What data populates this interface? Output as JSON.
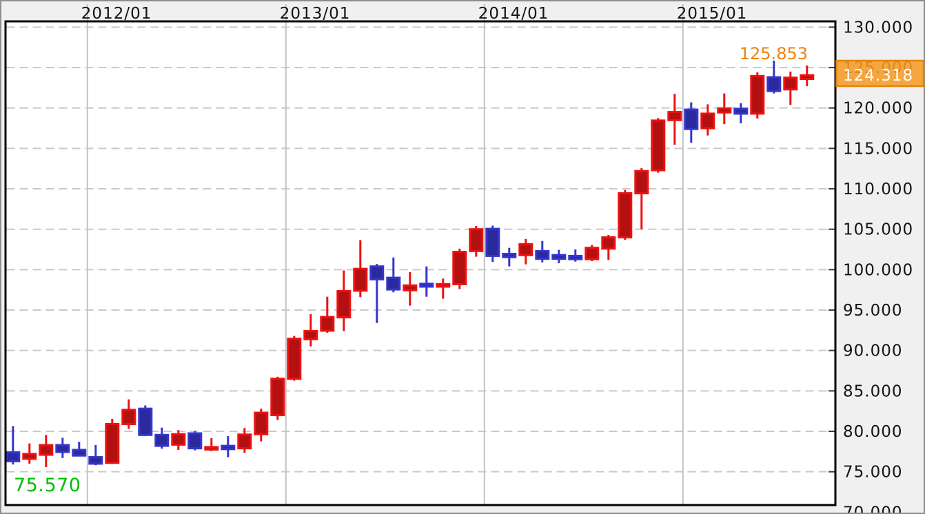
{
  "chart_data": {
    "type": "candlestick",
    "x_axis": {
      "labels": [
        "2012/01",
        "2013/01",
        "2014/01",
        "2015/01"
      ]
    },
    "y_axis": {
      "labels": [
        "130.000",
        "125.000",
        "120.000",
        "115.000",
        "110.000",
        "105.000",
        "100.000",
        "95.000",
        "90.000",
        "85.000",
        "80.000",
        "75.000",
        "70.000"
      ]
    },
    "candles": [
      {
        "m": "2011/08",
        "o": 77.4,
        "h": 80.65,
        "l": 75.9,
        "c": 76.3
      },
      {
        "m": "2011/09",
        "o": 76.6,
        "h": 78.5,
        "l": 76.0,
        "c": 77.2
      },
      {
        "m": "2011/10",
        "o": 77.1,
        "h": 79.55,
        "l": 75.57,
        "c": 78.3
      },
      {
        "m": "2011/11",
        "o": 78.3,
        "h": 79.2,
        "l": 76.7,
        "c": 77.45
      },
      {
        "m": "2011/12",
        "o": 77.7,
        "h": 78.7,
        "l": 76.9,
        "c": 77.0
      },
      {
        "m": "2012/01",
        "o": 76.8,
        "h": 78.3,
        "l": 75.8,
        "c": 76.0
      },
      {
        "m": "2012/02",
        "o": 76.1,
        "h": 81.55,
        "l": 75.95,
        "c": 80.9
      },
      {
        "m": "2012/03",
        "o": 80.9,
        "h": 83.95,
        "l": 80.3,
        "c": 82.65
      },
      {
        "m": "2012/04",
        "o": 82.8,
        "h": 83.2,
        "l": 79.4,
        "c": 79.55
      },
      {
        "m": "2012/05",
        "o": 79.55,
        "h": 80.45,
        "l": 77.85,
        "c": 78.2
      },
      {
        "m": "2012/06",
        "o": 78.35,
        "h": 80.15,
        "l": 77.7,
        "c": 79.65
      },
      {
        "m": "2012/07",
        "o": 79.75,
        "h": 80.05,
        "l": 77.65,
        "c": 77.9
      },
      {
        "m": "2012/08",
        "o": 77.75,
        "h": 79.15,
        "l": 77.55,
        "c": 78.05
      },
      {
        "m": "2012/09",
        "o": 78.2,
        "h": 79.4,
        "l": 76.8,
        "c": 77.8
      },
      {
        "m": "2012/10",
        "o": 77.9,
        "h": 80.4,
        "l": 77.35,
        "c": 79.6
      },
      {
        "m": "2012/11",
        "o": 79.65,
        "h": 82.8,
        "l": 78.75,
        "c": 82.3
      },
      {
        "m": "2012/12",
        "o": 82.0,
        "h": 86.75,
        "l": 81.4,
        "c": 86.5
      },
      {
        "m": "2013/01",
        "o": 86.5,
        "h": 91.8,
        "l": 86.25,
        "c": 91.45
      },
      {
        "m": "2013/02",
        "o": 91.4,
        "h": 94.5,
        "l": 90.5,
        "c": 92.4
      },
      {
        "m": "2013/03",
        "o": 92.45,
        "h": 96.65,
        "l": 92.2,
        "c": 94.15
      },
      {
        "m": "2013/04",
        "o": 94.1,
        "h": 99.9,
        "l": 92.4,
        "c": 97.35
      },
      {
        "m": "2013/05",
        "o": 97.4,
        "h": 103.65,
        "l": 96.6,
        "c": 100.1
      },
      {
        "m": "2013/06",
        "o": 100.4,
        "h": 100.7,
        "l": 93.4,
        "c": 98.8
      },
      {
        "m": "2013/07",
        "o": 99.0,
        "h": 101.5,
        "l": 97.2,
        "c": 97.55
      },
      {
        "m": "2013/08",
        "o": 97.45,
        "h": 99.7,
        "l": 95.55,
        "c": 98.05
      },
      {
        "m": "2013/09",
        "o": 98.25,
        "h": 100.4,
        "l": 96.65,
        "c": 97.9
      },
      {
        "m": "2013/10",
        "o": 97.9,
        "h": 98.9,
        "l": 96.4,
        "c": 98.2
      },
      {
        "m": "2013/11",
        "o": 98.2,
        "h": 102.6,
        "l": 97.6,
        "c": 102.2
      },
      {
        "m": "2013/12",
        "o": 102.3,
        "h": 105.4,
        "l": 101.6,
        "c": 105.0
      },
      {
        "m": "2014/01",
        "o": 105.05,
        "h": 105.45,
        "l": 100.95,
        "c": 101.7
      },
      {
        "m": "2014/02",
        "o": 101.95,
        "h": 102.7,
        "l": 100.4,
        "c": 101.55
      },
      {
        "m": "2014/03",
        "o": 101.8,
        "h": 103.8,
        "l": 100.65,
        "c": 103.15
      },
      {
        "m": "2014/04",
        "o": 102.3,
        "h": 103.55,
        "l": 100.9,
        "c": 101.35
      },
      {
        "m": "2014/05",
        "o": 101.8,
        "h": 102.45,
        "l": 100.8,
        "c": 101.35
      },
      {
        "m": "2014/06",
        "o": 101.7,
        "h": 102.5,
        "l": 101.0,
        "c": 101.3
      },
      {
        "m": "2014/07",
        "o": 101.3,
        "h": 103.05,
        "l": 101.05,
        "c": 102.7
      },
      {
        "m": "2014/08",
        "o": 102.6,
        "h": 104.3,
        "l": 101.2,
        "c": 104.0
      },
      {
        "m": "2014/09",
        "o": 104.0,
        "h": 109.85,
        "l": 103.7,
        "c": 109.45
      },
      {
        "m": "2014/10",
        "o": 109.45,
        "h": 112.55,
        "l": 105.0,
        "c": 112.2
      },
      {
        "m": "2014/11",
        "o": 112.3,
        "h": 118.75,
        "l": 112.0,
        "c": 118.45
      },
      {
        "m": "2014/12",
        "o": 118.5,
        "h": 121.75,
        "l": 115.45,
        "c": 119.5
      },
      {
        "m": "2015/01",
        "o": 119.8,
        "h": 120.7,
        "l": 115.7,
        "c": 117.4
      },
      {
        "m": "2015/02",
        "o": 117.5,
        "h": 120.45,
        "l": 116.6,
        "c": 119.3
      },
      {
        "m": "2015/03",
        "o": 119.45,
        "h": 121.8,
        "l": 118.0,
        "c": 119.95
      },
      {
        "m": "2015/04",
        "o": 119.9,
        "h": 120.6,
        "l": 118.1,
        "c": 119.3
      },
      {
        "m": "2015/05",
        "o": 119.3,
        "h": 124.4,
        "l": 118.7,
        "c": 123.95
      },
      {
        "m": "2015/06",
        "o": 123.8,
        "h": 125.853,
        "l": 121.8,
        "c": 122.1
      },
      {
        "m": "2015/07",
        "o": 122.3,
        "h": 124.5,
        "l": 120.4,
        "c": 123.75
      },
      {
        "m": "2015/08",
        "o": 123.6,
        "h": 125.25,
        "l": 122.7,
        "c": 124.05
      }
    ],
    "annotations": {
      "low_label": "75.570",
      "high_label": "125.853"
    },
    "price_box": {
      "label": "124.318"
    },
    "colors": {
      "bg": "#f0f0f0",
      "plot_bg": "#ffffff",
      "plot_border": "#000000",
      "outer_frame": "#8d8d8d",
      "grid_dashed": "#c9c9c9",
      "grid_vertical": "#c3c3c3",
      "tick": "#3a3a3a",
      "text": "#141414",
      "bull_fill": "#b31111",
      "bull_stroke": "#ee1111",
      "bear_fill": "#2a2a9c",
      "bear_stroke": "#3535cf",
      "low_label_color": "#00bf00",
      "high_label_color": "#ef820f",
      "price_box_fill": "#f59b25",
      "price_box_border": "#e2830d",
      "price_box_text": "#ffffff"
    },
    "layout": {
      "legend": "none",
      "grid": "horizontal-dashed, vertical-solid-at-year-start",
      "y_axis_side": "right",
      "x_axis_side": "top"
    }
  }
}
